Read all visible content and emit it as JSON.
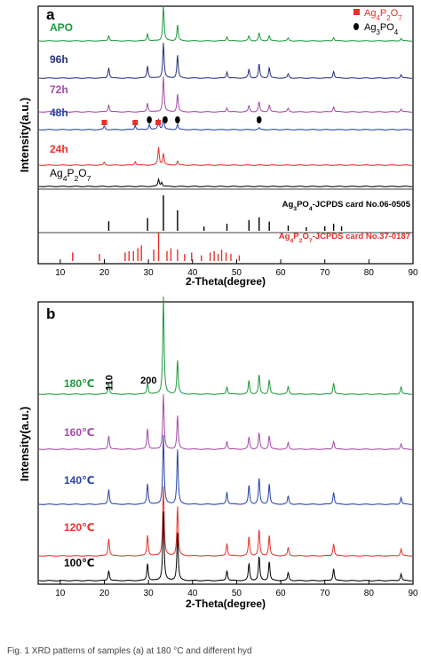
{
  "chart_data": [
    {
      "panel_label": "a",
      "type": "line",
      "xlabel": "2-Theta(degree)",
      "ylabel": "Intensity(a.u.)",
      "xlim": [
        5,
        90
      ],
      "xticks": [
        10,
        20,
        30,
        40,
        50,
        60,
        70,
        80,
        90
      ],
      "legend": [
        {
          "label": "Ag4P2O7",
          "marker": "square",
          "color": "#e8302a"
        },
        {
          "label": "Ag3PO4",
          "marker": "ellipse",
          "color": "#000000"
        }
      ],
      "series": [
        {
          "name": "APO",
          "color": "#1a9a3c",
          "peaks": [
            [
              21.0,
              0.15
            ],
            [
              29.8,
              0.2
            ],
            [
              33.4,
              1.0
            ],
            [
              36.6,
              0.45
            ],
            [
              47.8,
              0.12
            ],
            [
              52.8,
              0.14
            ],
            [
              55.1,
              0.22
            ],
            [
              57.4,
              0.15
            ],
            [
              61.7,
              0.08
            ],
            [
              72.0,
              0.1
            ],
            [
              87.3,
              0.07
            ]
          ]
        },
        {
          "name": "96h",
          "color": "#26307d",
          "peaks": [
            [
              21.0,
              0.3
            ],
            [
              29.8,
              0.35
            ],
            [
              33.4,
              1.0
            ],
            [
              36.6,
              0.65
            ],
            [
              47.8,
              0.18
            ],
            [
              52.8,
              0.25
            ],
            [
              55.1,
              0.4
            ],
            [
              57.4,
              0.3
            ],
            [
              61.7,
              0.12
            ],
            [
              72.0,
              0.2
            ],
            [
              87.3,
              0.1
            ]
          ]
        },
        {
          "name": "72h",
          "color": "#a64aa6",
          "peaks": [
            [
              21.0,
              0.2
            ],
            [
              29.8,
              0.25
            ],
            [
              33.4,
              1.0
            ],
            [
              36.6,
              0.5
            ],
            [
              47.8,
              0.12
            ],
            [
              52.8,
              0.18
            ],
            [
              55.1,
              0.28
            ],
            [
              57.4,
              0.2
            ],
            [
              61.7,
              0.1
            ],
            [
              72.0,
              0.15
            ],
            [
              87.3,
              0.08
            ]
          ]
        },
        {
          "name": "48h",
          "color": "#2743a8",
          "peaks": [
            [
              20.0,
              0.2
            ],
            [
              27.0,
              0.25
            ],
            [
              30.2,
              0.3
            ],
            [
              32.3,
              0.6
            ],
            [
              33.4,
              0.7
            ],
            [
              36.6,
              0.3
            ],
            [
              55.1,
              0.1
            ]
          ]
        },
        {
          "name": "24h",
          "color": "#e8302a",
          "peaks": [
            [
              20.0,
              0.15
            ],
            [
              27.0,
              0.2
            ],
            [
              32.3,
              0.9
            ],
            [
              33.4,
              0.6
            ],
            [
              36.6,
              0.2
            ]
          ]
        },
        {
          "name": "Ag4P2O7",
          "color": "#000000",
          "peaks": [
            [
              32.3,
              1.0
            ],
            [
              33.0,
              0.6
            ]
          ]
        }
      ],
      "reference_cards": [
        {
          "name": "Ag3PO4-JCPDS card No.06-0505",
          "color": "#000000",
          "lines": [
            [
              21.0,
              0.27
            ],
            [
              29.8,
              0.36
            ],
            [
              33.4,
              1.0
            ],
            [
              36.6,
              0.58
            ],
            [
              42.6,
              0.12
            ],
            [
              47.8,
              0.2
            ],
            [
              52.8,
              0.3
            ],
            [
              55.1,
              0.38
            ],
            [
              57.4,
              0.26
            ],
            [
              61.7,
              0.15
            ],
            [
              65.8,
              0.1
            ],
            [
              70.0,
              0.13
            ],
            [
              72.0,
              0.2
            ],
            [
              73.8,
              0.13
            ]
          ]
        },
        {
          "name": "Ag4P2O7-JCPDS card No.37-0187",
          "color": "#e8302a",
          "lines": [
            [
              12.8,
              0.3
            ],
            [
              18.9,
              0.25
            ],
            [
              24.7,
              0.3
            ],
            [
              25.6,
              0.35
            ],
            [
              26.6,
              0.35
            ],
            [
              27.6,
              0.45
            ],
            [
              28.4,
              0.55
            ],
            [
              31.2,
              0.4
            ],
            [
              32.3,
              1.0
            ],
            [
              34.2,
              0.35
            ],
            [
              35.1,
              0.45
            ],
            [
              36.6,
              0.4
            ],
            [
              38.2,
              0.25
            ],
            [
              39.8,
              0.3
            ],
            [
              42.0,
              0.2
            ],
            [
              44.0,
              0.3
            ],
            [
              44.9,
              0.35
            ],
            [
              45.8,
              0.25
            ],
            [
              46.6,
              0.4
            ],
            [
              47.6,
              0.3
            ],
            [
              48.7,
              0.25
            ],
            [
              50.6,
              0.2
            ]
          ]
        }
      ],
      "markers": [
        {
          "shape": "square",
          "color": "#e8302a",
          "x": 20.0
        },
        {
          "shape": "square",
          "color": "#e8302a",
          "x": 27.0
        },
        {
          "shape": "square",
          "color": "#e8302a",
          "x": 32.2
        },
        {
          "shape": "ellipse",
          "color": "#000000",
          "x": 30.2
        },
        {
          "shape": "ellipse",
          "color": "#000000",
          "x": 33.8
        },
        {
          "shape": "ellipse",
          "color": "#000000",
          "x": 36.6
        },
        {
          "shape": "ellipse",
          "color": "#000000",
          "x": 55.1
        }
      ]
    },
    {
      "panel_label": "b",
      "type": "line",
      "xlabel": "2-Theta(degree)",
      "ylabel": "Intensity(a.u.)",
      "xlim": [
        5,
        90
      ],
      "xticks": [
        10,
        20,
        30,
        40,
        50,
        60,
        70,
        80,
        90
      ],
      "annotations": [
        {
          "text": "110",
          "x": 21.0
        },
        {
          "text": "200",
          "x": 29.8
        }
      ],
      "series": [
        {
          "name": "180℃",
          "color": "#1a9a3c",
          "peaks": [
            [
              21.0,
              0.12
            ],
            [
              29.8,
              0.12
            ],
            [
              33.4,
              1.0
            ],
            [
              36.6,
              0.35
            ],
            [
              47.8,
              0.08
            ],
            [
              52.8,
              0.14
            ],
            [
              55.1,
              0.2
            ],
            [
              57.4,
              0.15
            ],
            [
              61.7,
              0.08
            ],
            [
              72.0,
              0.12
            ],
            [
              87.3,
              0.08
            ]
          ]
        },
        {
          "name": "160℃",
          "color": "#a64aa6",
          "peaks": [
            [
              21.0,
              0.25
            ],
            [
              29.8,
              0.38
            ],
            [
              33.4,
              1.0
            ],
            [
              36.6,
              0.62
            ],
            [
              47.8,
              0.15
            ],
            [
              52.8,
              0.22
            ],
            [
              55.1,
              0.3
            ],
            [
              57.4,
              0.25
            ],
            [
              61.7,
              0.12
            ],
            [
              72.0,
              0.15
            ],
            [
              87.3,
              0.1
            ]
          ]
        },
        {
          "name": "140℃",
          "color": "#2743a8",
          "peaks": [
            [
              21.0,
              0.22
            ],
            [
              29.8,
              0.3
            ],
            [
              33.4,
              1.0
            ],
            [
              36.6,
              0.8
            ],
            [
              47.8,
              0.18
            ],
            [
              52.8,
              0.28
            ],
            [
              55.1,
              0.38
            ],
            [
              57.4,
              0.3
            ],
            [
              61.7,
              0.12
            ],
            [
              72.0,
              0.18
            ],
            [
              87.3,
              0.1
            ]
          ]
        },
        {
          "name": "120℃",
          "color": "#e8302a",
          "peaks": [
            [
              21.0,
              0.25
            ],
            [
              29.8,
              0.3
            ],
            [
              33.4,
              1.0
            ],
            [
              36.6,
              0.72
            ],
            [
              47.8,
              0.18
            ],
            [
              52.8,
              0.28
            ],
            [
              55.1,
              0.38
            ],
            [
              57.4,
              0.3
            ],
            [
              61.7,
              0.12
            ],
            [
              72.0,
              0.18
            ],
            [
              87.3,
              0.1
            ]
          ]
        },
        {
          "name": "100℃",
          "color": "#000000",
          "peaks": [
            [
              21.0,
              0.15
            ],
            [
              29.8,
              0.25
            ],
            [
              33.4,
              1.0
            ],
            [
              36.6,
              0.7
            ],
            [
              47.8,
              0.15
            ],
            [
              52.8,
              0.25
            ],
            [
              55.1,
              0.35
            ],
            [
              57.4,
              0.28
            ],
            [
              61.7,
              0.12
            ],
            [
              72.0,
              0.18
            ],
            [
              87.3,
              0.1
            ]
          ]
        }
      ]
    }
  ],
  "caption_fragment": "Fig. 1 XRD patterns of samples (a) at 180 °C and different hyd"
}
